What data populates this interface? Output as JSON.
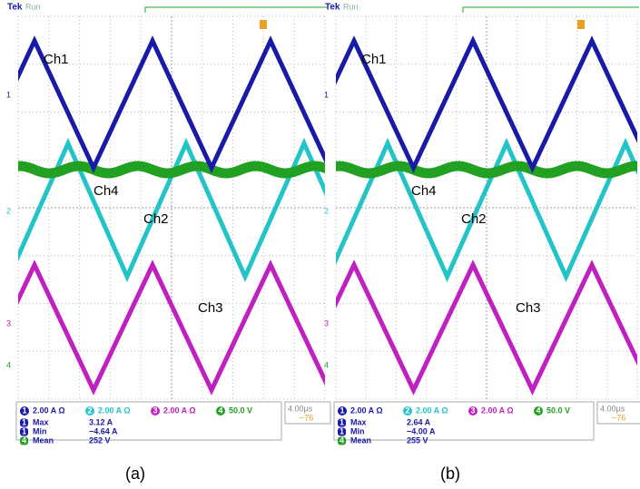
{
  "panels": [
    {
      "header": {
        "brand": "Tek",
        "state": "Run"
      },
      "trace_labels": {
        "ch1": "Ch1",
        "ch4": "Ch4",
        "ch2": "Ch2",
        "ch3": "Ch3"
      },
      "channel_markers": [
        "1",
        "2",
        "3",
        "4"
      ],
      "settings": [
        {
          "channel": "1",
          "scale": "2.00 A Ω"
        },
        {
          "channel": "2",
          "scale": "2.00 A Ω"
        },
        {
          "channel": "3",
          "scale": "2.00 A Ω"
        },
        {
          "channel": "4",
          "scale": "50.0 V"
        }
      ],
      "measurements": [
        {
          "channel": "1",
          "name": "Max",
          "value": "3.12 A"
        },
        {
          "channel": "1",
          "name": "Min",
          "value": "−4.64 A"
        },
        {
          "channel": "4",
          "name": "Mean",
          "value": "252 V"
        }
      ],
      "timebase": "4.00µs",
      "trigger": "−76",
      "caption": "(a)"
    },
    {
      "header": {
        "brand": "Tek",
        "state": "Run"
      },
      "trace_labels": {
        "ch1": "Ch1",
        "ch4": "Ch4",
        "ch2": "Ch2",
        "ch3": "Ch3"
      },
      "channel_markers": [
        "1",
        "2",
        "3",
        "4"
      ],
      "settings": [
        {
          "channel": "1",
          "scale": "2.00 A Ω"
        },
        {
          "channel": "2",
          "scale": "2.00 A Ω"
        },
        {
          "channel": "3",
          "scale": "2.00 A Ω"
        },
        {
          "channel": "4",
          "scale": "50.0 V"
        }
      ],
      "measurements": [
        {
          "channel": "1",
          "name": "Max",
          "value": "2.64 A"
        },
        {
          "channel": "1",
          "name": "Min",
          "value": "−4.00 A"
        },
        {
          "channel": "4",
          "name": "Mean",
          "value": "255 V"
        }
      ],
      "timebase": "4.00µs",
      "trigger": "−76",
      "caption": "(b)"
    }
  ]
}
